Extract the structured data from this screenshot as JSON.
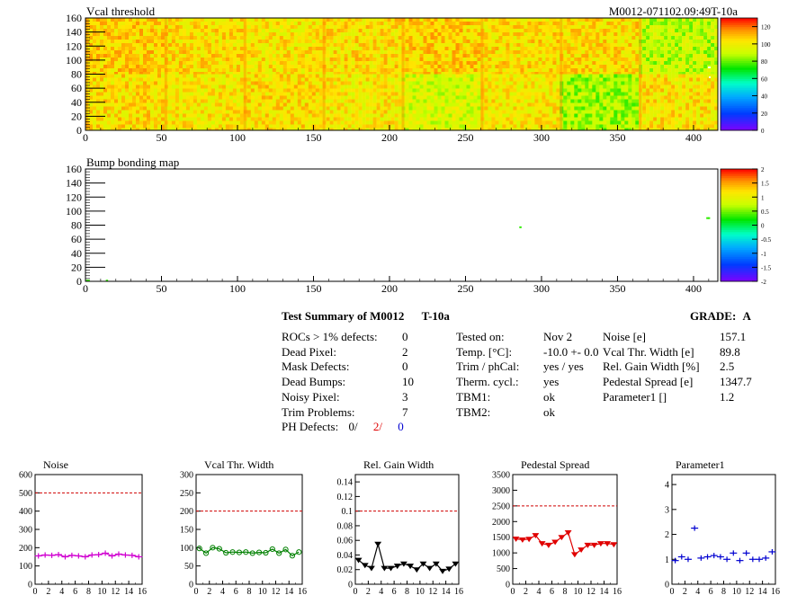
{
  "maps": [
    {
      "title": "Vcal threshold",
      "run_label": "M0012-071102.09:49T-10a",
      "xlim": [
        0,
        416
      ],
      "ylim": [
        0,
        160
      ],
      "x_ticks": [
        "0",
        "50",
        "100",
        "150",
        "200",
        "250",
        "300",
        "350",
        "400"
      ],
      "y_ticks": [
        "0",
        "20",
        "40",
        "60",
        "80",
        "100",
        "120",
        "140",
        "160"
      ],
      "palette_ticks": [
        "0",
        "20",
        "40",
        "60",
        "80",
        "100",
        "120"
      ],
      "zlim": [
        0,
        130
      ]
    },
    {
      "title": "Bump bonding map",
      "xlim": [
        0,
        416
      ],
      "ylim": [
        0,
        160
      ],
      "x_ticks": [
        "0",
        "50",
        "100",
        "150",
        "200",
        "250",
        "300",
        "350",
        "400"
      ],
      "y_ticks": [
        "0",
        "20",
        "40",
        "60",
        "80",
        "100",
        "120",
        "140",
        "160"
      ],
      "palette_ticks": [
        "-2",
        "-1.5",
        "-1",
        "-0.5",
        "0",
        "0.5",
        "1",
        "1.5",
        "2"
      ],
      "zlim": [
        -2,
        2
      ],
      "hits": [
        {
          "x": 1,
          "y": 1
        },
        {
          "x": 2,
          "y": 1
        },
        {
          "x": 14,
          "y": 1
        },
        {
          "x": 286,
          "y": 77
        },
        {
          "x": 409,
          "y": 90
        },
        {
          "x": 410,
          "y": 90
        }
      ]
    }
  ],
  "summary": {
    "title": "Test Summary of M0012",
    "temp_label": "T-10a",
    "grade_label": "GRADE:",
    "grade": "A",
    "col1": [
      {
        "label": "ROCs > 1% defects:",
        "value": "0"
      },
      {
        "label": "Dead Pixel:",
        "value": "2"
      },
      {
        "label": "Mask Defects:",
        "value": "0"
      },
      {
        "label": "Dead Bumps:",
        "value": "10"
      },
      {
        "label": "Noisy Pixel:",
        "value": "3"
      },
      {
        "label": "Trim Problems:",
        "value": "7"
      }
    ],
    "ph_defects": {
      "label": "PH Defects:",
      "v1": "0/",
      "v2": "2/",
      "v3": "0"
    },
    "col2": [
      {
        "label": "Tested on:",
        "value": "Nov 2"
      },
      {
        "label": "Temp. [°C]:",
        "value": "-10.0 +- 0.0"
      },
      {
        "label": "Trim / phCal:",
        "value": "yes / yes"
      },
      {
        "label": "Therm. cycl.:",
        "value": "yes"
      },
      {
        "label": "TBM1:",
        "value": "ok"
      },
      {
        "label": "TBM2:",
        "value": "ok"
      }
    ],
    "col3": [
      {
        "label": "Noise [e]",
        "value": "157.1"
      },
      {
        "label": "Vcal Thr. Width [e]",
        "value": "89.8"
      },
      {
        "label": "Rel. Gain Width [%]",
        "value": "2.5"
      },
      {
        "label": "Pedestal Spread [e]",
        "value": "1347.7"
      },
      {
        "label": "Parameter1 []",
        "value": "1.2"
      }
    ]
  },
  "chart_data": [
    {
      "type": "line",
      "title": "Noise",
      "color": "#d000d0",
      "marker": "cross",
      "xlim": [
        0,
        16
      ],
      "ylim": [
        0,
        600
      ],
      "limit": 500,
      "x_ticks": [
        "0",
        "2",
        "4",
        "6",
        "8",
        "10",
        "12",
        "14",
        "16"
      ],
      "y_ticks": [
        "0",
        "100",
        "200",
        "300",
        "400",
        "500",
        "600"
      ],
      "x": [
        0,
        1,
        2,
        3,
        4,
        5,
        6,
        7,
        8,
        9,
        10,
        11,
        12,
        13,
        14,
        15
      ],
      "values": [
        155,
        160,
        158,
        162,
        150,
        158,
        155,
        150,
        160,
        162,
        170,
        155,
        165,
        160,
        158,
        150
      ]
    },
    {
      "type": "line",
      "title": "Vcal Thr. Width",
      "color": "#008000",
      "marker": "circle",
      "xlim": [
        0,
        16
      ],
      "ylim": [
        0,
        300
      ],
      "limit": 200,
      "x_ticks": [
        "0",
        "2",
        "4",
        "6",
        "8",
        "10",
        "12",
        "14",
        "16"
      ],
      "y_ticks": [
        "0",
        "50",
        "100",
        "150",
        "200",
        "250",
        "300"
      ],
      "x": [
        0,
        1,
        2,
        3,
        4,
        5,
        6,
        7,
        8,
        9,
        10,
        11,
        12,
        13,
        14,
        15
      ],
      "values": [
        98,
        85,
        100,
        97,
        86,
        88,
        87,
        88,
        85,
        87,
        86,
        96,
        85,
        95,
        78,
        88
      ]
    },
    {
      "type": "line",
      "title": "Rel. Gain Width",
      "color": "#000000",
      "marker": "triangle",
      "xlim": [
        0,
        16
      ],
      "ylim": [
        0,
        0.15
      ],
      "limit": 0.1,
      "x_ticks": [
        "0",
        "2",
        "4",
        "6",
        "8",
        "10",
        "12",
        "14",
        "16"
      ],
      "y_ticks": [
        "0",
        "0.02",
        "0.04",
        "0.06",
        "0.08",
        "0.1",
        "0.12",
        "0.14"
      ],
      "x": [
        0,
        1,
        2,
        3,
        4,
        5,
        6,
        7,
        8,
        9,
        10,
        11,
        12,
        13,
        14,
        15
      ],
      "values": [
        0.033,
        0.026,
        0.022,
        0.055,
        0.022,
        0.022,
        0.025,
        0.028,
        0.025,
        0.02,
        0.028,
        0.022,
        0.028,
        0.018,
        0.021,
        0.028
      ]
    },
    {
      "type": "line",
      "title": "Pedestal Spread",
      "color": "#e00000",
      "marker": "triangle",
      "xlim": [
        0,
        16
      ],
      "ylim": [
        0,
        3500
      ],
      "limit": 2500,
      "x_ticks": [
        "0",
        "2",
        "4",
        "6",
        "8",
        "10",
        "12",
        "14",
        "16"
      ],
      "y_ticks": [
        "0",
        "500",
        "1000",
        "1500",
        "2000",
        "2500",
        "3000",
        "3500"
      ],
      "x": [
        0,
        1,
        2,
        3,
        4,
        5,
        6,
        7,
        8,
        9,
        10,
        11,
        12,
        13,
        14,
        15
      ],
      "values": [
        1450,
        1420,
        1440,
        1560,
        1300,
        1250,
        1350,
        1500,
        1650,
        950,
        1100,
        1250,
        1250,
        1300,
        1300,
        1270
      ]
    },
    {
      "type": "scatter",
      "title": "Parameter1",
      "color": "#0000d0",
      "marker": "cross",
      "xlim": [
        0,
        16
      ],
      "ylim": [
        0,
        4.4
      ],
      "x_ticks": [
        "0",
        "2",
        "4",
        "6",
        "8",
        "10",
        "12",
        "14",
        "16"
      ],
      "y_ticks": [
        "0",
        "1",
        "2",
        "3",
        "4"
      ],
      "x": [
        0,
        1,
        2,
        3,
        4,
        5,
        6,
        7,
        8,
        9,
        10,
        11,
        12,
        13,
        14,
        15
      ],
      "values": [
        0.95,
        1.1,
        1.0,
        2.25,
        1.05,
        1.1,
        1.15,
        1.1,
        1.0,
        1.25,
        0.95,
        1.25,
        1.0,
        1.0,
        1.05,
        1.3
      ]
    }
  ]
}
